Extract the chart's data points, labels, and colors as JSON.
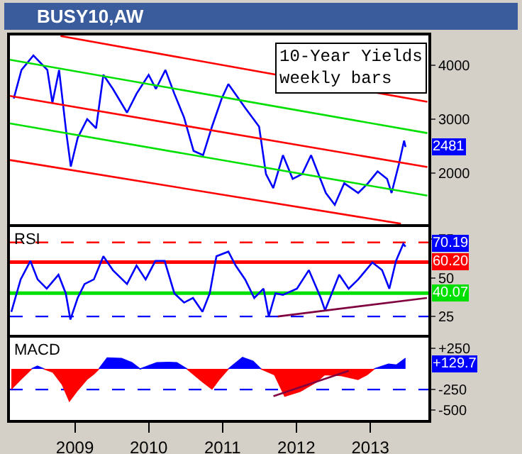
{
  "chart_data": [
    {
      "type": "line",
      "title": "BUSY10,AW",
      "x": [
        "2008-03-05",
        "2008-04-12",
        "2008-06-10",
        "2008-08-18",
        "2008-09-12",
        "2008-10-15",
        "2008-11-20",
        "2008-12-12",
        "2009-01-15",
        "2009-03-03",
        "2009-04-16",
        "2009-05-22",
        "2009-07-08",
        "2009-09-16",
        "2009-11-02",
        "2010-01-01",
        "2010-02-06",
        "2010-03-25",
        "2010-05-08",
        "2010-06-25",
        "2010-08-11",
        "2010-09-27",
        "2010-11-10",
        "2010-12-28",
        "2011-01-30",
        "2011-04-23",
        "2011-07-01",
        "2011-08-04",
        "2011-09-09",
        "2011-10-27",
        "2011-12-14",
        "2012-01-30",
        "2012-03-14",
        "2012-05-26",
        "2012-07-09",
        "2012-08-25",
        "2012-11-02",
        "2012-12-20",
        "2013-02-06",
        "2013-03-25",
        "2013-04-16",
        "2013-05-22",
        "2013-06-17",
        "2013-06-24"
      ],
      "series": [
        {
          "color": "#0000ff",
          "values": [
            3380,
            3910,
            4180,
            3910,
            3300,
            3910,
            2740,
            2120,
            2650,
            3000,
            2830,
            3820,
            3560,
            3120,
            3470,
            3820,
            3560,
            3910,
            3470,
            3030,
            2410,
            2330,
            2860,
            3380,
            3650,
            3210,
            2860,
            1980,
            1720,
            2330,
            1890,
            1980,
            2330,
            1630,
            1410,
            1810,
            1630,
            1810,
            2030,
            1890,
            1630,
            2160,
            2600,
            2481
          ]
        },
        {
          "type": "line",
          "color": "#ff0000",
          "x": [
            "2008-02-15",
            "2013-10-10"
          ],
          "values": [
            3430,
            2110
          ]
        },
        {
          "type": "line",
          "color": "#ff0000",
          "x": [
            "2008-10-22",
            "2013-10-10"
          ],
          "values": [
            4540,
            3320
          ]
        },
        {
          "type": "line",
          "color": "#ff0000",
          "x": [
            "2008-02-15",
            "2013-06-01"
          ],
          "values": [
            2240,
            1060
          ]
        },
        {
          "type": "line",
          "color": "#00e000",
          "x": [
            "2008-02-15",
            "2013-10-10"
          ],
          "values": [
            4100,
            2740
          ]
        },
        {
          "type": "line",
          "color": "#00e000",
          "x": [
            "2008-02-15",
            "2013-10-10"
          ],
          "values": [
            2920,
            1580
          ]
        }
      ],
      "annotations": [
        "10-Year Yields\nweekly bars",
        "2481"
      ],
      "xlim": [
        "2008-02-15",
        "2013-10-15"
      ],
      "ylim": [
        1050,
        4550
      ],
      "yticks": [
        2000,
        3000,
        4000
      ],
      "tick_labels": "y",
      "grid": false
    },
    {
      "type": "line",
      "x": [
        "2008-02-22",
        "2008-04-08",
        "2008-05-26",
        "2008-07-01",
        "2008-08-15",
        "2008-10-12",
        "2008-11-17",
        "2008-12-10",
        "2009-01-15",
        "2009-02-18",
        "2009-04-05",
        "2009-05-22",
        "2009-07-08",
        "2009-09-16",
        "2009-11-02",
        "2009-12-17",
        "2010-02-03",
        "2010-03-21",
        "2010-05-08",
        "2010-06-25",
        "2010-08-08",
        "2010-09-24",
        "2010-10-30",
        "2010-12-02",
        "2011-01-30",
        "2011-03-07",
        "2011-04-23",
        "2011-06-07",
        "2011-07-23",
        "2011-08-18",
        "2011-09-20",
        "2011-10-27",
        "2012-01-04",
        "2012-03-03",
        "2012-05-01",
        "2012-05-22",
        "2012-07-31",
        "2012-09-16",
        "2012-11-02",
        "2013-01-11",
        "2013-02-28",
        "2013-04-05",
        "2013-05-08",
        "2013-06-13",
        "2013-06-24"
      ],
      "series": [
        {
          "color": "#0000ff",
          "values": [
            28,
            49,
            61,
            49,
            43,
            52,
            40,
            23,
            37,
            46,
            49,
            64,
            55,
            46,
            58,
            49,
            61,
            61,
            40,
            34,
            37,
            28,
            40,
            64,
            67,
            58,
            49,
            37,
            43,
            25,
            40,
            39,
            43,
            55,
            37,
            29,
            52,
            43,
            49,
            60,
            55,
            43,
            61,
            72,
            70.19
          ]
        },
        {
          "type": "line",
          "color": "#800040",
          "x": [
            "2011-10-01",
            "2013-10-08"
          ],
          "values": [
            25,
            37
          ]
        }
      ],
      "ref_lines": [
        {
          "axis": "y",
          "value": 73,
          "color": "#ff0000",
          "line_style": "dashed"
        },
        {
          "axis": "y",
          "value": 60.2,
          "label": "60.20",
          "color": "#ff0000",
          "line_style": "solid"
        },
        {
          "axis": "y",
          "value": 40.07,
          "label": "40.07",
          "color": "#00e000",
          "line_style": "solid"
        },
        {
          "axis": "y",
          "value": 25,
          "color": "#0000ff",
          "line_style": "dashed"
        }
      ],
      "annotations": [
        "RSI",
        "70.19"
      ],
      "xlim": [
        "2008-02-15",
        "2013-10-15"
      ],
      "ylim": [
        13,
        83
      ],
      "yticks": [
        25,
        50,
        75
      ],
      "tick_labels": "y",
      "grid": false
    },
    {
      "type": "area",
      "x": [
        "2008-02-22",
        "2008-04-08",
        "2008-06-01",
        "2008-06-30",
        "2008-08-01",
        "2008-09-15",
        "2008-10-30",
        "2008-12-05",
        "2009-01-10",
        "2009-03-01",
        "2009-04-05",
        "2009-04-30",
        "2009-06-10",
        "2009-08-20",
        "2009-10-10",
        "2009-11-20",
        "2010-02-10",
        "2010-04-10",
        "2010-05-20",
        "2010-07-10",
        "2010-09-25",
        "2010-11-10",
        "2010-12-15",
        "2011-01-30",
        "2011-04-10",
        "2011-06-01",
        "2011-07-10",
        "2011-09-15",
        "2011-11-05",
        "2012-01-20",
        "2012-04-10",
        "2012-05-20",
        "2012-08-10",
        "2012-11-01",
        "2012-12-15",
        "2013-01-20",
        "2013-04-01",
        "2013-05-10",
        "2013-06-24"
      ],
      "series": [
        {
          "type": "area",
          "color": "#0000ff",
          "values": [
            null,
            null,
            0,
            35,
            0,
            null,
            null,
            null,
            null,
            null,
            null,
            0,
            134,
            128,
            76,
            0,
            76,
            81,
            76,
            0,
            null,
            null,
            null,
            0,
            140,
            93,
            0,
            null,
            null,
            null,
            null,
            null,
            null,
            null,
            null,
            0,
            58,
            47,
            129.7
          ]
        },
        {
          "type": "area",
          "color": "#ff0000",
          "values": [
            -244,
            -128,
            0,
            null,
            0,
            -41,
            -186,
            -390,
            -273,
            -128,
            -60,
            0,
            null,
            null,
            null,
            0,
            null,
            null,
            null,
            0,
            -157,
            -244,
            -128,
            0,
            null,
            null,
            0,
            -70,
            -331,
            -273,
            -157,
            -70,
            -81,
            -128,
            -70,
            0,
            null,
            null,
            null
          ]
        },
        {
          "type": "line",
          "color": "#800040",
          "x": [
            "2011-09-10",
            "2012-09-16"
          ],
          "values": [
            -331,
            -23
          ]
        }
      ],
      "ref_lines": [
        {
          "axis": "y",
          "value": -250,
          "color": "#0000ff",
          "line_style": "dashed"
        }
      ],
      "annotations": [
        "MACD",
        "+129.7"
      ],
      "xlim": [
        "2008-02-15",
        "2013-10-15"
      ],
      "ylim": [
        -620,
        380
      ],
      "xticks": [
        "2009",
        "2010",
        "2011",
        "2012",
        "2013"
      ],
      "yticks": [
        {
          "value": 250,
          "label": "+250"
        },
        {
          "value": -250,
          "label": "-250"
        },
        {
          "value": -500,
          "label": "-500"
        }
      ],
      "grid": false
    }
  ]
}
